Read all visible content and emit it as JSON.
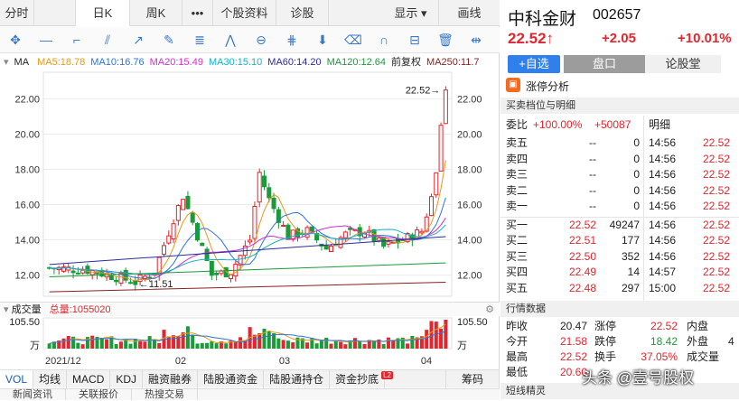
{
  "tabs": [
    {
      "label": "分时"
    },
    {
      "label": "日K"
    },
    {
      "label": "周K"
    },
    {
      "label": "•••"
    },
    {
      "label": "个股资料"
    },
    {
      "label": "诊股"
    },
    {
      "label": "显示 ▾"
    },
    {
      "label": "画线"
    }
  ],
  "ma_legend": {
    "label": "MA",
    "items": [
      {
        "text": "MA5:18.78",
        "color": "#e39b19"
      },
      {
        "text": "MA10:16.76",
        "color": "#2f73d8"
      },
      {
        "text": "MA20:15.49",
        "color": "#d12fd1"
      },
      {
        "text": "MA30:15.10",
        "color": "#18b0c9"
      },
      {
        "text": "MA60:14.20",
        "color": "#2c2c9f"
      },
      {
        "text": "MA120:12.64",
        "color": "#1a9b3a"
      },
      {
        "text": "前复权",
        "color": "#222222"
      },
      {
        "text": "MA250:11.7",
        "color": "#8a2020"
      }
    ]
  },
  "axis": {
    "y_left": [
      "22.00",
      "20.00",
      "18.00",
      "16.00",
      "14.00",
      "12.00"
    ],
    "y_right": [
      "22.00",
      "20.00",
      "18.00",
      "16.00",
      "14.00",
      "12.00"
    ],
    "x": [
      "2021/12",
      "02",
      "03",
      "04"
    ],
    "max_label": "22.52→",
    "min_label": "←11.51"
  },
  "volume": {
    "title": "成交量",
    "total_label": "总量:1055020",
    "y_top": "105.50",
    "y_unit": "万",
    "y_right_top": "105.50",
    "y_right_unit": "万"
  },
  "bottom_tabs": [
    "VOL",
    "均线",
    "MACD",
    "KDJ",
    "融资融券",
    "陆股通资金",
    "陆股通持仓",
    "资金抄底",
    "筹码"
  ],
  "bottom_badge": "L2",
  "news_tabs": [
    "新闻资讯",
    "关联报价",
    "热搜交易"
  ],
  "stock": {
    "name": "中科金财",
    "code": "002657",
    "price": "22.52",
    "arrow": "↑",
    "change": "+2.05",
    "pct": "+10.01%"
  },
  "right_tabs": {
    "add": "+自选",
    "pankou": "盘口",
    "forum": "论股堂"
  },
  "zt_label": "涨停分析",
  "section_order": "买卖档位与明细",
  "weibi": {
    "label": "委比",
    "pct": "+100.00%",
    "diff": "+50087",
    "detail": "明细"
  },
  "asks": [
    {
      "label": "卖五",
      "price": "--",
      "vol": "0"
    },
    {
      "label": "卖四",
      "price": "--",
      "vol": "0"
    },
    {
      "label": "卖三",
      "price": "--",
      "vol": "0"
    },
    {
      "label": "卖二",
      "price": "--",
      "vol": "0"
    },
    {
      "label": "卖一",
      "price": "--",
      "vol": "0"
    }
  ],
  "bids": [
    {
      "label": "买一",
      "price": "22.52",
      "vol": "49247"
    },
    {
      "label": "买二",
      "price": "22.51",
      "vol": "177"
    },
    {
      "label": "买三",
      "price": "22.50",
      "vol": "352"
    },
    {
      "label": "买四",
      "price": "22.49",
      "vol": "14"
    },
    {
      "label": "买五",
      "price": "22.48",
      "vol": "297"
    }
  ],
  "ticks": [
    {
      "time": "14:56",
      "price": "22.52"
    },
    {
      "time": "14:56",
      "price": "22.52"
    },
    {
      "time": "14:56",
      "price": "22.52"
    },
    {
      "time": "14:56",
      "price": "22.52"
    },
    {
      "time": "14:56",
      "price": "22.52"
    },
    {
      "time": "14:56",
      "price": "22.52"
    },
    {
      "time": "14:56",
      "price": "22.52"
    },
    {
      "time": "14:56",
      "price": "22.52"
    },
    {
      "time": "14:57",
      "price": "22.52"
    },
    {
      "time": "15:00",
      "price": "22.52"
    }
  ],
  "section_quote": "行情数据",
  "quote": [
    {
      "k1": "昨收",
      "v1": "20.47",
      "k2": "涨停",
      "v2": "22.52",
      "k3": "内盘",
      "v3": ""
    },
    {
      "k1": "今开",
      "v1": "21.58",
      "k2": "跌停",
      "v2": "18.42",
      "k3": "外盘",
      "v3": "4"
    },
    {
      "k1": "最高",
      "v1": "22.52",
      "k2": "换手",
      "v2": "37.05%",
      "k3": "成交量",
      "v3": ""
    },
    {
      "k1": "最低",
      "v1": "20.60",
      "k2": "",
      "v2": "",
      "k3": "",
      "v3": ""
    }
  ],
  "section_elf": "短线精灵",
  "watermark": "头条 @壹号股权",
  "colors": {
    "up": "#e0262e",
    "down": "#1a9b3a",
    "accent": "#3a78c9"
  }
}
